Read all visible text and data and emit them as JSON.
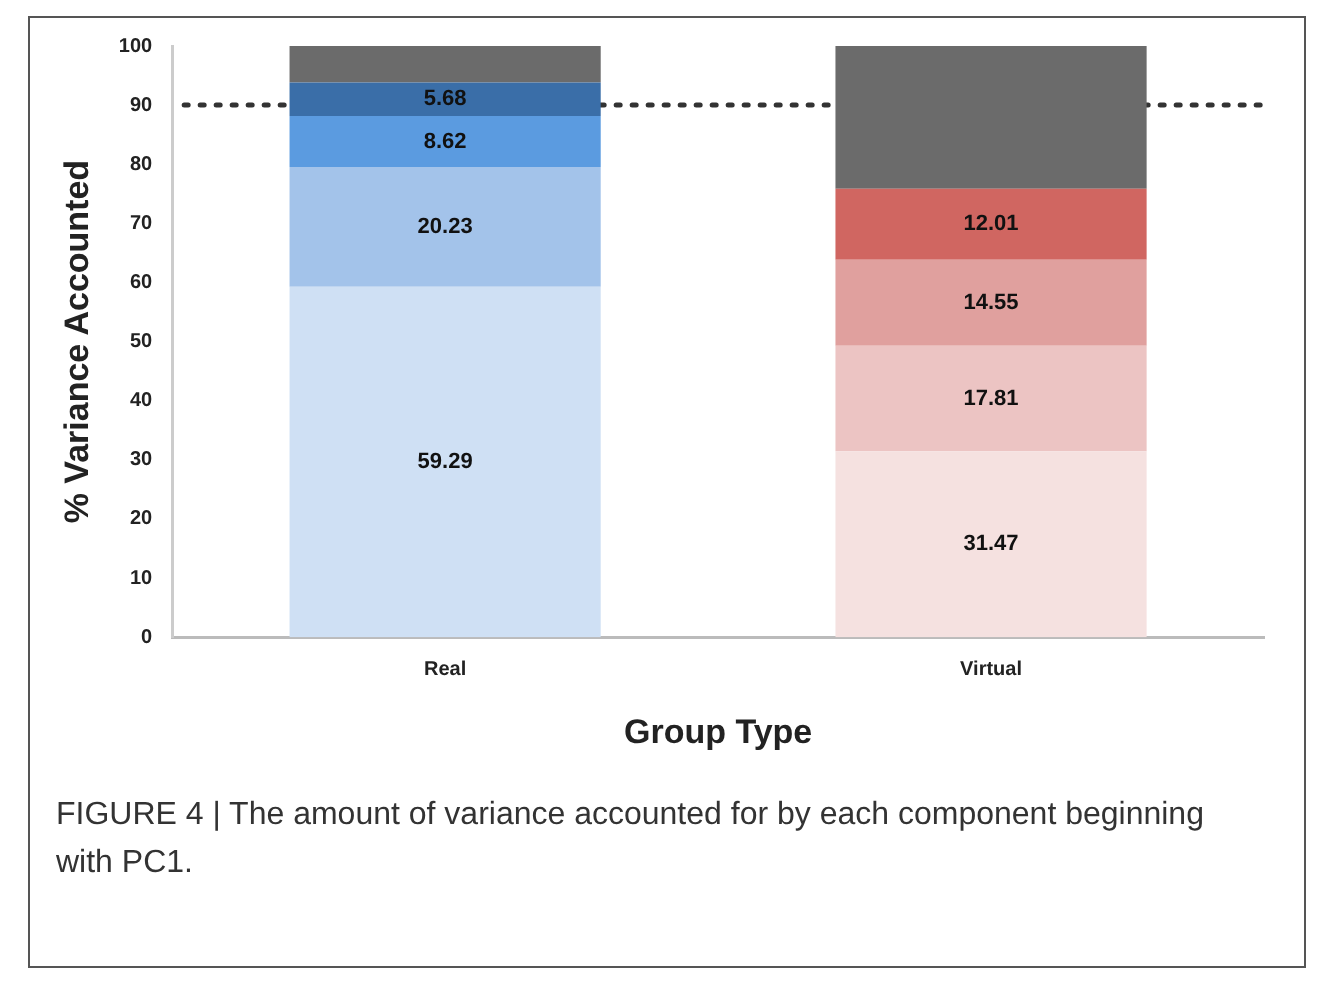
{
  "chart_data": {
    "type": "bar",
    "stacked": true,
    "xlabel": "Group Type",
    "ylabel": "% Variance Accounted",
    "categories": [
      "Real",
      "Virtual"
    ],
    "series": [
      {
        "colors": [
          "#cfe0f4",
          "#f5e1e0"
        ],
        "values": [
          59.29,
          31.47
        ],
        "value_labels": [
          "59.29",
          "31.47"
        ]
      },
      {
        "colors": [
          "#a3c3ea",
          "#ecc4c3"
        ],
        "values": [
          20.23,
          17.81
        ],
        "value_labels": [
          "20.23",
          "17.81"
        ]
      },
      {
        "colors": [
          "#5b9be0",
          "#e0a09e"
        ],
        "values": [
          8.62,
          14.55
        ],
        "value_labels": [
          "8.62",
          "14.55"
        ]
      },
      {
        "colors": [
          "#3a6ea8",
          "#d06661"
        ],
        "values": [
          5.68,
          12.01
        ],
        "value_labels": [
          "5.68",
          "12.01"
        ]
      },
      {
        "colors": [
          "#6b6b6b",
          "#6b6b6b"
        ],
        "values": [
          6.2,
          24.2
        ]
      }
    ],
    "ylim": [
      0,
      100
    ],
    "yticks": [
      0,
      10,
      20,
      30,
      40,
      50,
      60,
      70,
      80,
      90,
      100
    ],
    "grid": false,
    "legend": false,
    "ref_lines": [
      {
        "axis": "y",
        "value": 90,
        "line_style": "dotted",
        "color": "#333333"
      }
    ],
    "annotations": [
      "FIGURE 4 | The amount of variance accounted for by each component beginning with PC1."
    ]
  }
}
